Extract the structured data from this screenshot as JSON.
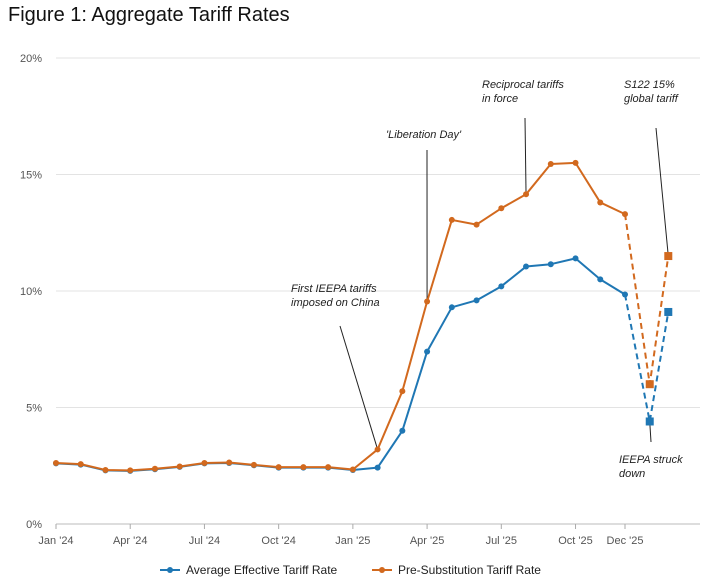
{
  "title": "Figure 1: Aggregate Tariff Rates",
  "chart_data": {
    "type": "line",
    "title": "Figure 1: Aggregate Tariff Rates",
    "ylim": [
      0,
      20
    ],
    "yticks": [
      0,
      5,
      10,
      15,
      20
    ],
    "ytick_labels": [
      "0%",
      "5%",
      "10%",
      "15%",
      "20%"
    ],
    "xticks": [
      {
        "idx": 0,
        "label": "Jan '24"
      },
      {
        "idx": 3,
        "label": "Apr '24"
      },
      {
        "idx": 6,
        "label": "Jul '24"
      },
      {
        "idx": 9,
        "label": "Oct '24"
      },
      {
        "idx": 12,
        "label": "Jan '25"
      },
      {
        "idx": 15,
        "label": "Apr '25"
      },
      {
        "idx": 18,
        "label": "Jul '25"
      },
      {
        "idx": 21,
        "label": "Oct '25"
      },
      {
        "idx": 23,
        "label": "Dec '25"
      }
    ],
    "series": [
      {
        "name": "Average Effective Tariff Rate",
        "color": "#1f77b4",
        "values": [
          2.6,
          2.55,
          2.3,
          2.28,
          2.35,
          2.45,
          2.6,
          2.62,
          2.52,
          2.42,
          2.42,
          2.42,
          2.32,
          2.42,
          4.0,
          7.4,
          9.3,
          9.6,
          10.2,
          11.05,
          11.15,
          11.4,
          10.5,
          9.85
        ],
        "projected": [
          {
            "idx": 24,
            "value": 4.4
          },
          {
            "idx": 24.75,
            "value": 9.1
          }
        ]
      },
      {
        "name": "Pre-Substitution Tariff Rate",
        "color": "#d2691e",
        "values": [
          2.62,
          2.57,
          2.32,
          2.3,
          2.37,
          2.47,
          2.62,
          2.64,
          2.54,
          2.44,
          2.44,
          2.44,
          2.34,
          3.2,
          5.7,
          9.55,
          13.05,
          12.85,
          13.55,
          14.15,
          15.45,
          15.5,
          13.8,
          13.3
        ],
        "projected": [
          {
            "idx": 24,
            "value": 6.0
          },
          {
            "idx": 24.75,
            "value": 11.5
          }
        ]
      }
    ],
    "annotations": [
      {
        "text": [
          "First IEEPA tariffs",
          "imposed on China"
        ],
        "target_idx": 13,
        "target_value": 3.2
      },
      {
        "text": [
          "'Liberation Day'"
        ],
        "target_idx": 15,
        "target_value": 9.55
      },
      {
        "text": [
          "Reciprocal tariffs",
          "in force"
        ],
        "target_idx": 19,
        "target_value": 14.15
      },
      {
        "text": [
          "S122 15%",
          "global tariff"
        ],
        "target_idx": 24.75,
        "target_value": 11.5
      },
      {
        "text": [
          "IEEPA struck",
          "down"
        ],
        "target_idx": 24,
        "target_value": 4.4
      }
    ]
  }
}
